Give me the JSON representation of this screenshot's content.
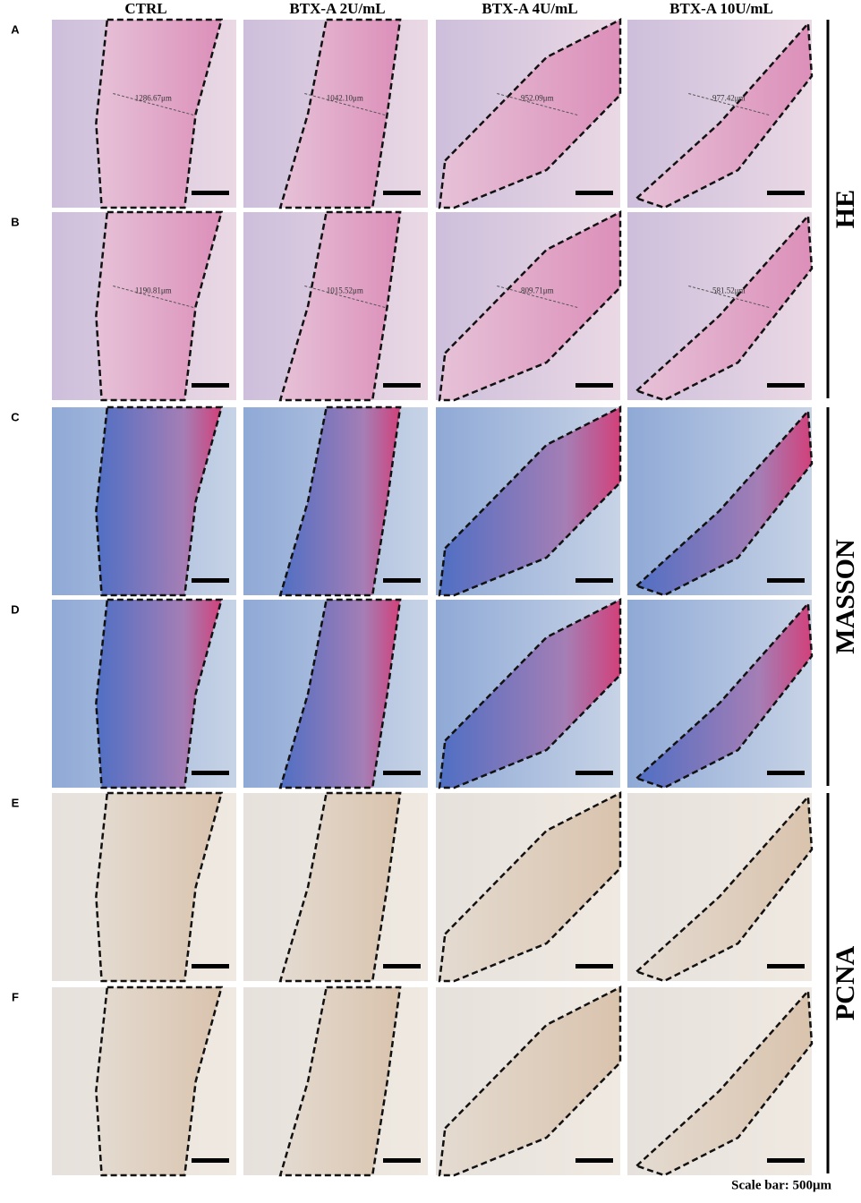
{
  "columns": [
    "CTRL",
    "BTX-A 2U/mL",
    "BTX-A 4U/mL",
    "BTX-A 10U/mL"
  ],
  "rows": [
    "A",
    "B",
    "C",
    "D",
    "E",
    "F"
  ],
  "stains": [
    "HE",
    "MASSON",
    "PCNA"
  ],
  "measurements": [
    [
      "1286.67μm",
      "1042.10μm",
      "952.09μm",
      "977.42μm"
    ],
    [
      "1190.81μm",
      "1015.52μm",
      "809.71μm",
      "581.52μm"
    ]
  ],
  "scale_bar": "Scale bar: 500μm"
}
